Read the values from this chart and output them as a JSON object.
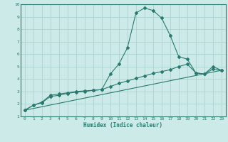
{
  "xlabel": "Humidex (Indice chaleur)",
  "background_color": "#cceae7",
  "grid_color": "#aad4d0",
  "line_color": "#2a7a6f",
  "xlim": [
    -0.5,
    23.5
  ],
  "ylim": [
    1,
    10
  ],
  "xticks": [
    0,
    1,
    2,
    3,
    4,
    5,
    6,
    7,
    8,
    9,
    10,
    11,
    12,
    13,
    14,
    15,
    16,
    17,
    18,
    19,
    20,
    21,
    22,
    23
  ],
  "yticks": [
    1,
    2,
    3,
    4,
    5,
    6,
    7,
    8,
    9,
    10
  ],
  "series1_x": [
    0,
    1,
    2,
    3,
    4,
    5,
    6,
    7,
    8,
    9,
    10,
    11,
    12,
    13,
    14,
    15,
    16,
    17,
    18,
    19,
    20,
    21,
    22,
    23
  ],
  "series1_y": [
    1.5,
    1.9,
    2.15,
    2.7,
    2.8,
    2.9,
    3.0,
    3.05,
    3.1,
    3.15,
    4.4,
    5.2,
    6.5,
    9.3,
    9.7,
    9.5,
    8.9,
    7.5,
    5.8,
    5.6,
    4.5,
    4.4,
    5.0,
    4.7
  ],
  "series2_x": [
    0,
    1,
    2,
    3,
    4,
    5,
    6,
    7,
    8,
    9,
    10,
    11,
    12,
    13,
    14,
    15,
    16,
    17,
    18,
    19,
    20,
    21,
    22,
    23
  ],
  "series2_y": [
    1.5,
    1.9,
    2.1,
    2.6,
    2.7,
    2.85,
    2.95,
    3.0,
    3.1,
    3.15,
    3.4,
    3.65,
    3.85,
    4.05,
    4.25,
    4.45,
    4.6,
    4.75,
    5.0,
    5.2,
    4.5,
    4.4,
    4.8,
    4.7
  ],
  "series3_x": [
    0,
    23
  ],
  "series3_y": [
    1.5,
    4.7
  ]
}
